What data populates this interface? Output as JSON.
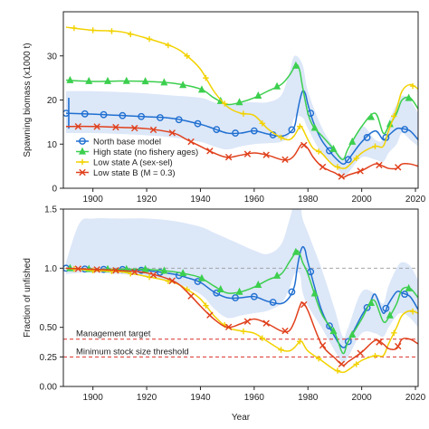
{
  "colors": {
    "north": "#1f6fd1",
    "high": "#3ccf4e",
    "lowA": "#f2d200",
    "lowB": "#e0401c",
    "band": "#dce7f8",
    "ref": "#d9302a",
    "unfished": "#9a9a9a"
  },
  "chart_data": [
    {
      "type": "line",
      "title": "",
      "xlabel": "",
      "ylabel": "Spawning biomass (x1000 t)",
      "xlim": [
        1889,
        2021
      ],
      "ylim": [
        0,
        40
      ],
      "xticks": [
        1900,
        1920,
        1940,
        1960,
        1980,
        2000,
        2020
      ],
      "xtick_labels": [
        "1900",
        "1920",
        "1940",
        "1960",
        "1980",
        "2000",
        "2020"
      ],
      "yticks": [
        0,
        10,
        20,
        30
      ],
      "ytick_labels": [
        "0",
        "10",
        "20",
        "30"
      ],
      "grid": false,
      "legend_position": "lower-left",
      "initial_interval": {
        "x": 1890,
        "low": 13.5,
        "high": 20.5
      },
      "interval_band": {
        "x": [
          1890,
          1900,
          1910,
          1920,
          1930,
          1940,
          1945,
          1950,
          1955,
          1960,
          1965,
          1970,
          1973,
          1975,
          1978,
          1980,
          1985,
          1990,
          1993,
          1995,
          2000,
          2005,
          2008,
          2010,
          2013,
          2015,
          2018,
          2021
        ],
        "lower": [
          12.5,
          12.5,
          12.3,
          12,
          11.5,
          10.5,
          9.5,
          8.8,
          9.5,
          10,
          10.2,
          10.5,
          12,
          16,
          16,
          13.5,
          8,
          5,
          3,
          3.5,
          7,
          6.5,
          6,
          8,
          10,
          12.5,
          11,
          9.5
        ],
        "upper": [
          22,
          22,
          21.8,
          21.5,
          21,
          20.5,
          19.5,
          19,
          19.5,
          19.5,
          19.5,
          21,
          26,
          30,
          28,
          22,
          14,
          9,
          7,
          8,
          14,
          11,
          11,
          15,
          19,
          21,
          20,
          17
        ]
      },
      "series": [
        {
          "name": "North base model",
          "color_key": "north",
          "marker": "circle",
          "x": [
            1890,
            1900,
            1910,
            1920,
            1930,
            1940,
            1945,
            1950,
            1955,
            1960,
            1965,
            1970,
            1973,
            1975,
            1976,
            1977,
            1978,
            1979,
            1980,
            1982,
            1985,
            1988,
            1990,
            1993,
            1995,
            2000,
            2005,
            2008,
            2010,
            2013,
            2015,
            2018,
            2021
          ],
          "y": [
            17,
            16.8,
            16.5,
            16.2,
            15.8,
            14.5,
            13.5,
            12.5,
            12.5,
            13,
            12.3,
            11.8,
            12.5,
            14,
            17,
            20,
            22,
            21.5,
            19,
            15,
            11,
            8.5,
            7,
            5.5,
            6.5,
            10.5,
            13,
            11,
            12,
            13.5,
            13.5,
            13,
            11
          ]
        },
        {
          "name": "High state (no fishery ages)",
          "color_key": "high",
          "marker": "triangle",
          "x": [
            1890,
            1900,
            1910,
            1920,
            1930,
            1940,
            1945,
            1950,
            1955,
            1960,
            1965,
            1970,
            1973,
            1975,
            1976,
            1977,
            1978,
            1980,
            1982,
            1985,
            1988,
            1990,
            1993,
            1995,
            2000,
            2005,
            2008,
            2010,
            2013,
            2015,
            2018,
            2021
          ],
          "y": [
            24.5,
            24.2,
            24.3,
            24.2,
            23.8,
            22.5,
            20.5,
            19,
            19.5,
            20.5,
            22,
            23.5,
            25.5,
            27.5,
            28,
            26.5,
            23,
            17,
            14,
            12,
            10,
            8.5,
            6.5,
            9,
            14,
            17,
            12.5,
            14,
            17,
            20,
            20.5,
            18
          ]
        },
        {
          "name": "Low state A (sex-sel)",
          "color_key": "lowA",
          "marker": "plus",
          "x": [
            1890,
            1900,
            1910,
            1920,
            1930,
            1935,
            1940,
            1945,
            1950,
            1955,
            1960,
            1965,
            1970,
            1973,
            1975,
            1977,
            1978,
            1980,
            1982,
            1985,
            1988,
            1990,
            1993,
            1995,
            2000,
            2005,
            2008,
            2010,
            2013,
            2015,
            2018,
            2021
          ],
          "y": [
            36.5,
            35.8,
            35.5,
            34,
            32,
            30,
            27,
            22,
            18.5,
            17,
            16.5,
            13.5,
            11.5,
            11,
            12,
            14,
            13.5,
            11,
            9,
            8,
            6,
            5,
            4.5,
            5,
            8,
            9.5,
            9.5,
            13,
            18,
            22,
            23.5,
            22.5
          ]
        },
        {
          "name": "Low state B (M = 0.3)",
          "color_key": "lowB",
          "marker": "x",
          "x": [
            1890,
            1900,
            1910,
            1920,
            1930,
            1935,
            1940,
            1945,
            1950,
            1955,
            1960,
            1965,
            1970,
            1973,
            1975,
            1977,
            1978,
            1980,
            1982,
            1985,
            1988,
            1990,
            1993,
            1995,
            2000,
            2005,
            2008,
            2010,
            2013,
            2015,
            2018,
            2021
          ],
          "y": [
            14,
            14,
            13.8,
            13.5,
            12.5,
            11,
            9.5,
            8,
            7,
            7.5,
            8,
            7.5,
            6.5,
            6.5,
            7.5,
            9.5,
            10,
            9,
            7,
            5,
            4,
            3.5,
            2.5,
            3,
            4,
            5.5,
            5,
            4.5,
            4.5,
            5.5,
            5.5,
            5
          ]
        }
      ]
    },
    {
      "type": "line",
      "title": "",
      "xlabel": "Year",
      "ylabel": "Fraction of unfished",
      "xlim": [
        1889,
        2021
      ],
      "ylim": [
        0,
        1.5
      ],
      "xticks": [
        1900,
        1920,
        1940,
        1960,
        1980,
        2000,
        2020
      ],
      "xtick_labels": [
        "1900",
        "1920",
        "1940",
        "1960",
        "1980",
        "2000",
        "2020"
      ],
      "yticks": [
        0,
        0.25,
        0.5,
        1.0,
        1.5
      ],
      "ytick_labels": [
        "0.00",
        "0.25",
        "0.50",
        "1.0",
        "1.5"
      ],
      "grid": false,
      "unfished_line": 1.0,
      "reference_lines": [
        {
          "label": "Management target",
          "y": 0.4
        },
        {
          "label": "Minimum stock size threshold",
          "y": 0.25
        }
      ],
      "interval_band": {
        "x": [
          1890,
          1895,
          1900,
          1910,
          1920,
          1930,
          1940,
          1945,
          1950,
          1955,
          1960,
          1965,
          1970,
          1973,
          1975,
          1977,
          1978,
          1980,
          1985,
          1990,
          1993,
          1995,
          2000,
          2005,
          2008,
          2010,
          2013,
          2015,
          2018,
          2021
        ],
        "lower": [
          0.95,
          0.96,
          0.96,
          0.95,
          0.93,
          0.88,
          0.78,
          0.66,
          0.58,
          0.6,
          0.62,
          0.64,
          0.7,
          0.82,
          0.95,
          0.95,
          0.8,
          0.68,
          0.5,
          0.3,
          0.2,
          0.25,
          0.45,
          0.45,
          0.42,
          0.5,
          0.6,
          0.62,
          0.58,
          0.5
        ],
        "upper": [
          1.05,
          1.38,
          1.42,
          1.42,
          1.42,
          1.4,
          1.35,
          1.3,
          1.25,
          1.2,
          1.15,
          1.12,
          1.2,
          1.4,
          1.55,
          1.55,
          1.42,
          1.3,
          1.0,
          0.65,
          0.42,
          0.5,
          0.8,
          0.78,
          0.7,
          0.85,
          1.0,
          1.05,
          1.02,
          0.9
        ]
      },
      "series": [
        {
          "name": "North base model",
          "color_key": "north",
          "marker": "circle",
          "x": [
            1890,
            1900,
            1910,
            1920,
            1930,
            1935,
            1940,
            1945,
            1950,
            1955,
            1960,
            1965,
            1970,
            1973,
            1975,
            1976,
            1977,
            1978,
            1979,
            1980,
            1985,
            1990,
            1993,
            1995,
            2000,
            2003,
            2005,
            2008,
            2010,
            2013,
            2015,
            2018,
            2021
          ],
          "y": [
            1.0,
            0.99,
            0.99,
            0.98,
            0.95,
            0.92,
            0.88,
            0.8,
            0.75,
            0.75,
            0.76,
            0.72,
            0.7,
            0.75,
            0.85,
            1.0,
            1.12,
            1.18,
            1.15,
            1.05,
            0.65,
            0.42,
            0.33,
            0.38,
            0.6,
            0.7,
            0.78,
            0.62,
            0.7,
            0.8,
            0.79,
            0.76,
            0.65
          ]
        },
        {
          "name": "High state (no fishery ages)",
          "color_key": "high",
          "marker": "triangle",
          "x": [
            1890,
            1900,
            1910,
            1920,
            1930,
            1935,
            1940,
            1945,
            1950,
            1955,
            1960,
            1965,
            1970,
            1973,
            1975,
            1976,
            1977,
            1978,
            1980,
            1985,
            1990,
            1993,
            1995,
            2000,
            2003,
            2005,
            2008,
            2010,
            2013,
            2015,
            2018,
            2021
          ],
          "y": [
            1.0,
            0.99,
            0.99,
            0.99,
            0.97,
            0.95,
            0.92,
            0.85,
            0.79,
            0.8,
            0.84,
            0.9,
            0.95,
            1.05,
            1.12,
            1.15,
            1.12,
            1.05,
            0.95,
            0.62,
            0.45,
            0.28,
            0.38,
            0.57,
            0.7,
            0.72,
            0.55,
            0.58,
            0.7,
            0.82,
            0.83,
            0.75
          ]
        },
        {
          "name": "Low state A (sex-sel)",
          "color_key": "lowA",
          "marker": "plus",
          "x": [
            1890,
            1900,
            1910,
            1920,
            1930,
            1935,
            1940,
            1945,
            1950,
            1955,
            1960,
            1965,
            1970,
            1973,
            1975,
            1977,
            1978,
            1980,
            1985,
            1990,
            1993,
            1995,
            2000,
            2005,
            2008,
            2010,
            2013,
            2015,
            2018,
            2021
          ],
          "y": [
            1.0,
            0.98,
            0.97,
            0.93,
            0.88,
            0.82,
            0.74,
            0.6,
            0.5,
            0.47,
            0.45,
            0.38,
            0.31,
            0.3,
            0.33,
            0.38,
            0.37,
            0.3,
            0.22,
            0.14,
            0.12,
            0.14,
            0.22,
            0.26,
            0.26,
            0.36,
            0.5,
            0.6,
            0.64,
            0.62
          ]
        },
        {
          "name": "Low state B (M = 0.3)",
          "color_key": "lowB",
          "marker": "x",
          "x": [
            1890,
            1900,
            1910,
            1920,
            1930,
            1935,
            1940,
            1945,
            1950,
            1955,
            1960,
            1965,
            1970,
            1973,
            1975,
            1977,
            1978,
            1980,
            1985,
            1990,
            1993,
            1995,
            2000,
            2005,
            2008,
            2010,
            2013,
            2015,
            2018,
            2021
          ],
          "y": [
            1.0,
            0.99,
            0.98,
            0.96,
            0.89,
            0.8,
            0.68,
            0.57,
            0.5,
            0.53,
            0.57,
            0.53,
            0.47,
            0.47,
            0.55,
            0.68,
            0.71,
            0.64,
            0.36,
            0.24,
            0.18,
            0.21,
            0.29,
            0.39,
            0.36,
            0.32,
            0.32,
            0.4,
            0.4,
            0.36
          ]
        }
      ]
    }
  ]
}
